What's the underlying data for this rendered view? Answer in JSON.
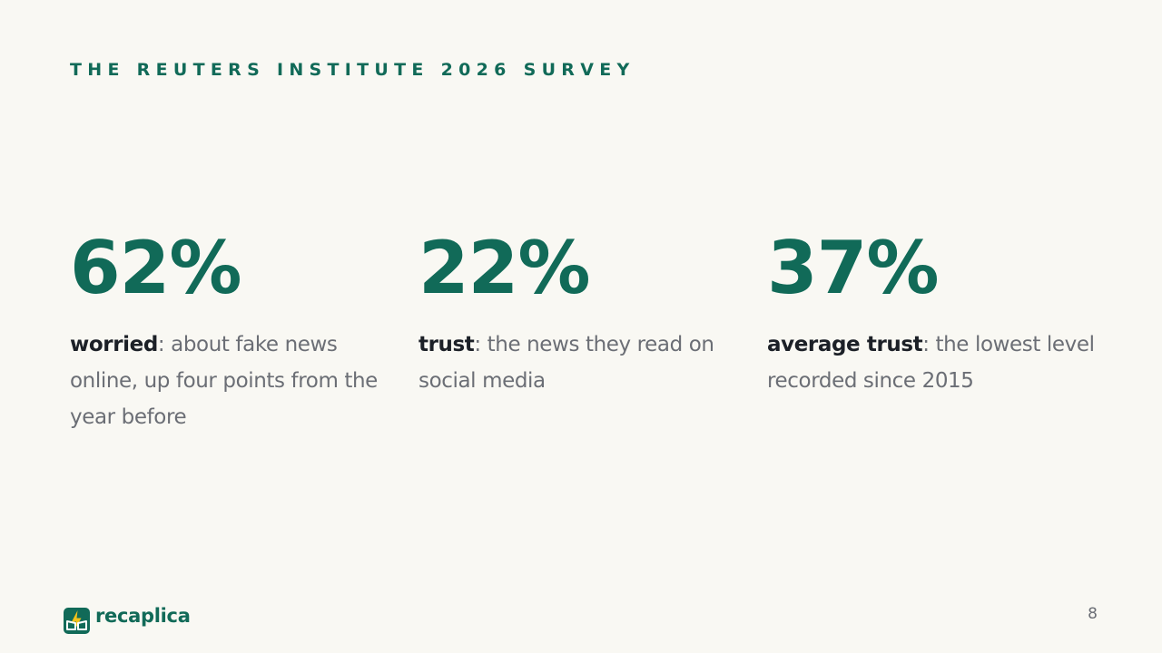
{
  "header": {
    "eyebrow": "THE REUTERS INSTITUTE 2026 SURVEY"
  },
  "stats": [
    {
      "value": "62%",
      "keyword": "worried",
      "text": ": about fake news online, up four points from the year before"
    },
    {
      "value": "22%",
      "keyword": "trust",
      "text": ": the news they read on social media"
    },
    {
      "value": "37%",
      "keyword": "average trust",
      "text": ": the lowest level recorded since 2015"
    }
  ],
  "footer": {
    "brand_name": "recaplica",
    "logo_icon": "lightning-bolt-book-icon",
    "page_number": "8"
  },
  "colors": {
    "accent": "#116a58",
    "background": "#f9f8f3",
    "keyword": "#1c2027",
    "body_text": "#6b6e75",
    "logo_bolt": "#f2c21b"
  }
}
